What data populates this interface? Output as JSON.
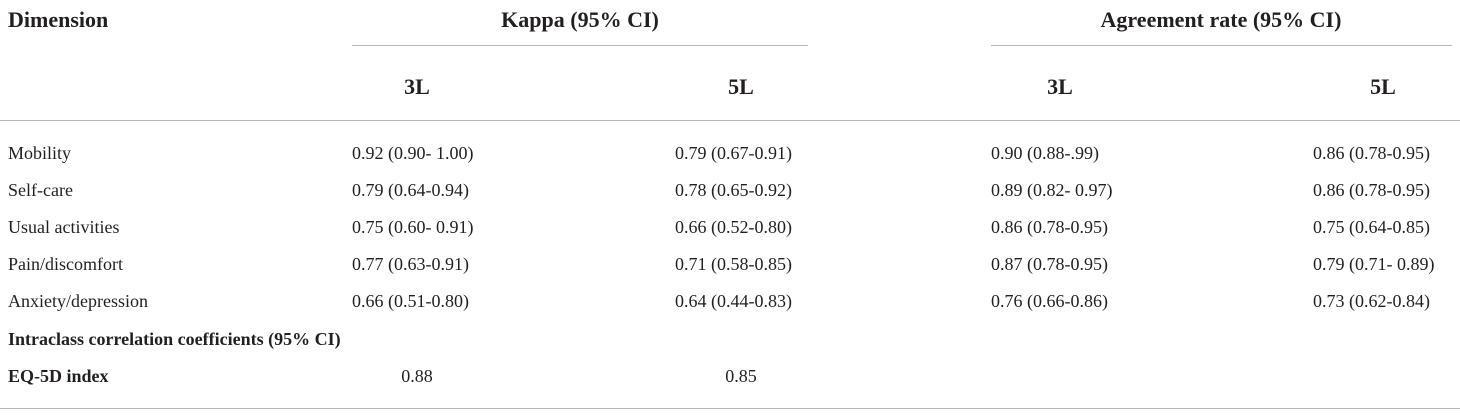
{
  "table": {
    "headers": {
      "dimension": "Dimension",
      "kappa": "Kappa (95% CI)",
      "agreement": "Agreement rate (95% CI)",
      "kappa_3l": "3L",
      "kappa_5l": "5L",
      "agree_3l": "3L",
      "agree_5l": "5L"
    },
    "rows": [
      {
        "dimension": "Mobility",
        "kappa_3l": "0.92 (0.90- 1.00)",
        "kappa_5l": "0.79 (0.67-0.91)",
        "agree_3l": "0.90 (0.88-.99)",
        "agree_5l": "0.86 (0.78-0.95)"
      },
      {
        "dimension": "Self-care",
        "kappa_3l": "0.79 (0.64-0.94)",
        "kappa_5l": "0.78 (0.65-0.92)",
        "agree_3l": "0.89 (0.82- 0.97)",
        "agree_5l": "0.86 (0.78-0.95)"
      },
      {
        "dimension": "Usual activities",
        "kappa_3l": "0.75 (0.60- 0.91)",
        "kappa_5l": "0.66 (0.52-0.80)",
        "agree_3l": "0.86 (0.78-0.95)",
        "agree_5l": "0.75 (0.64-0.85)"
      },
      {
        "dimension": "Pain/discomfort",
        "kappa_3l": "0.77 (0.63-0.91)",
        "kappa_5l": "0.71 (0.58-0.85)",
        "agree_3l": "0.87 (0.78-0.95)",
        "agree_5l": "0.79 (0.71- 0.89)"
      },
      {
        "dimension": "Anxiety/depression",
        "kappa_3l": "0.66 (0.51-0.80)",
        "kappa_5l": "0.64 (0.44-0.83)",
        "agree_3l": "0.76 (0.66-0.86)",
        "agree_5l": "0.73 (0.62-0.84)"
      }
    ],
    "icc_section": "Intraclass correlation coefficients (95% CI)",
    "eq5d": {
      "label": "EQ-5D index",
      "value_3l": "0.88",
      "value_5l": "0.85"
    }
  }
}
